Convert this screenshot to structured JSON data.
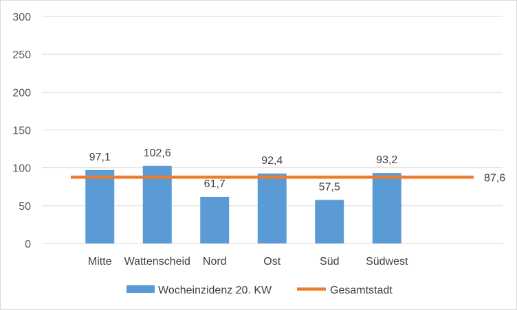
{
  "chart_data": {
    "type": "bar",
    "title": "",
    "xlabel": "",
    "ylabel": "",
    "ylim": [
      0,
      300
    ],
    "yticks": [
      0,
      50,
      100,
      150,
      200,
      250,
      300
    ],
    "grid": true,
    "legend_position": "bottom",
    "categories": [
      "Mitte",
      "Wattenscheid",
      "Nord",
      "Ost",
      "Süd",
      "Südwest"
    ],
    "series": [
      {
        "name": "Wocheinzidenz 20. KW",
        "type": "bar",
        "color": "#5b9bd5",
        "values": [
          97.1,
          102.6,
          61.7,
          92.4,
          57.5,
          93.2
        ],
        "labels": [
          "97,1",
          "102,6",
          "61,7",
          "92,4",
          "57,5",
          "93,2"
        ]
      },
      {
        "name": "Gesamtstadt",
        "type": "line",
        "color": "#ed7d31",
        "value": 87.6,
        "label": "87,6"
      }
    ]
  }
}
